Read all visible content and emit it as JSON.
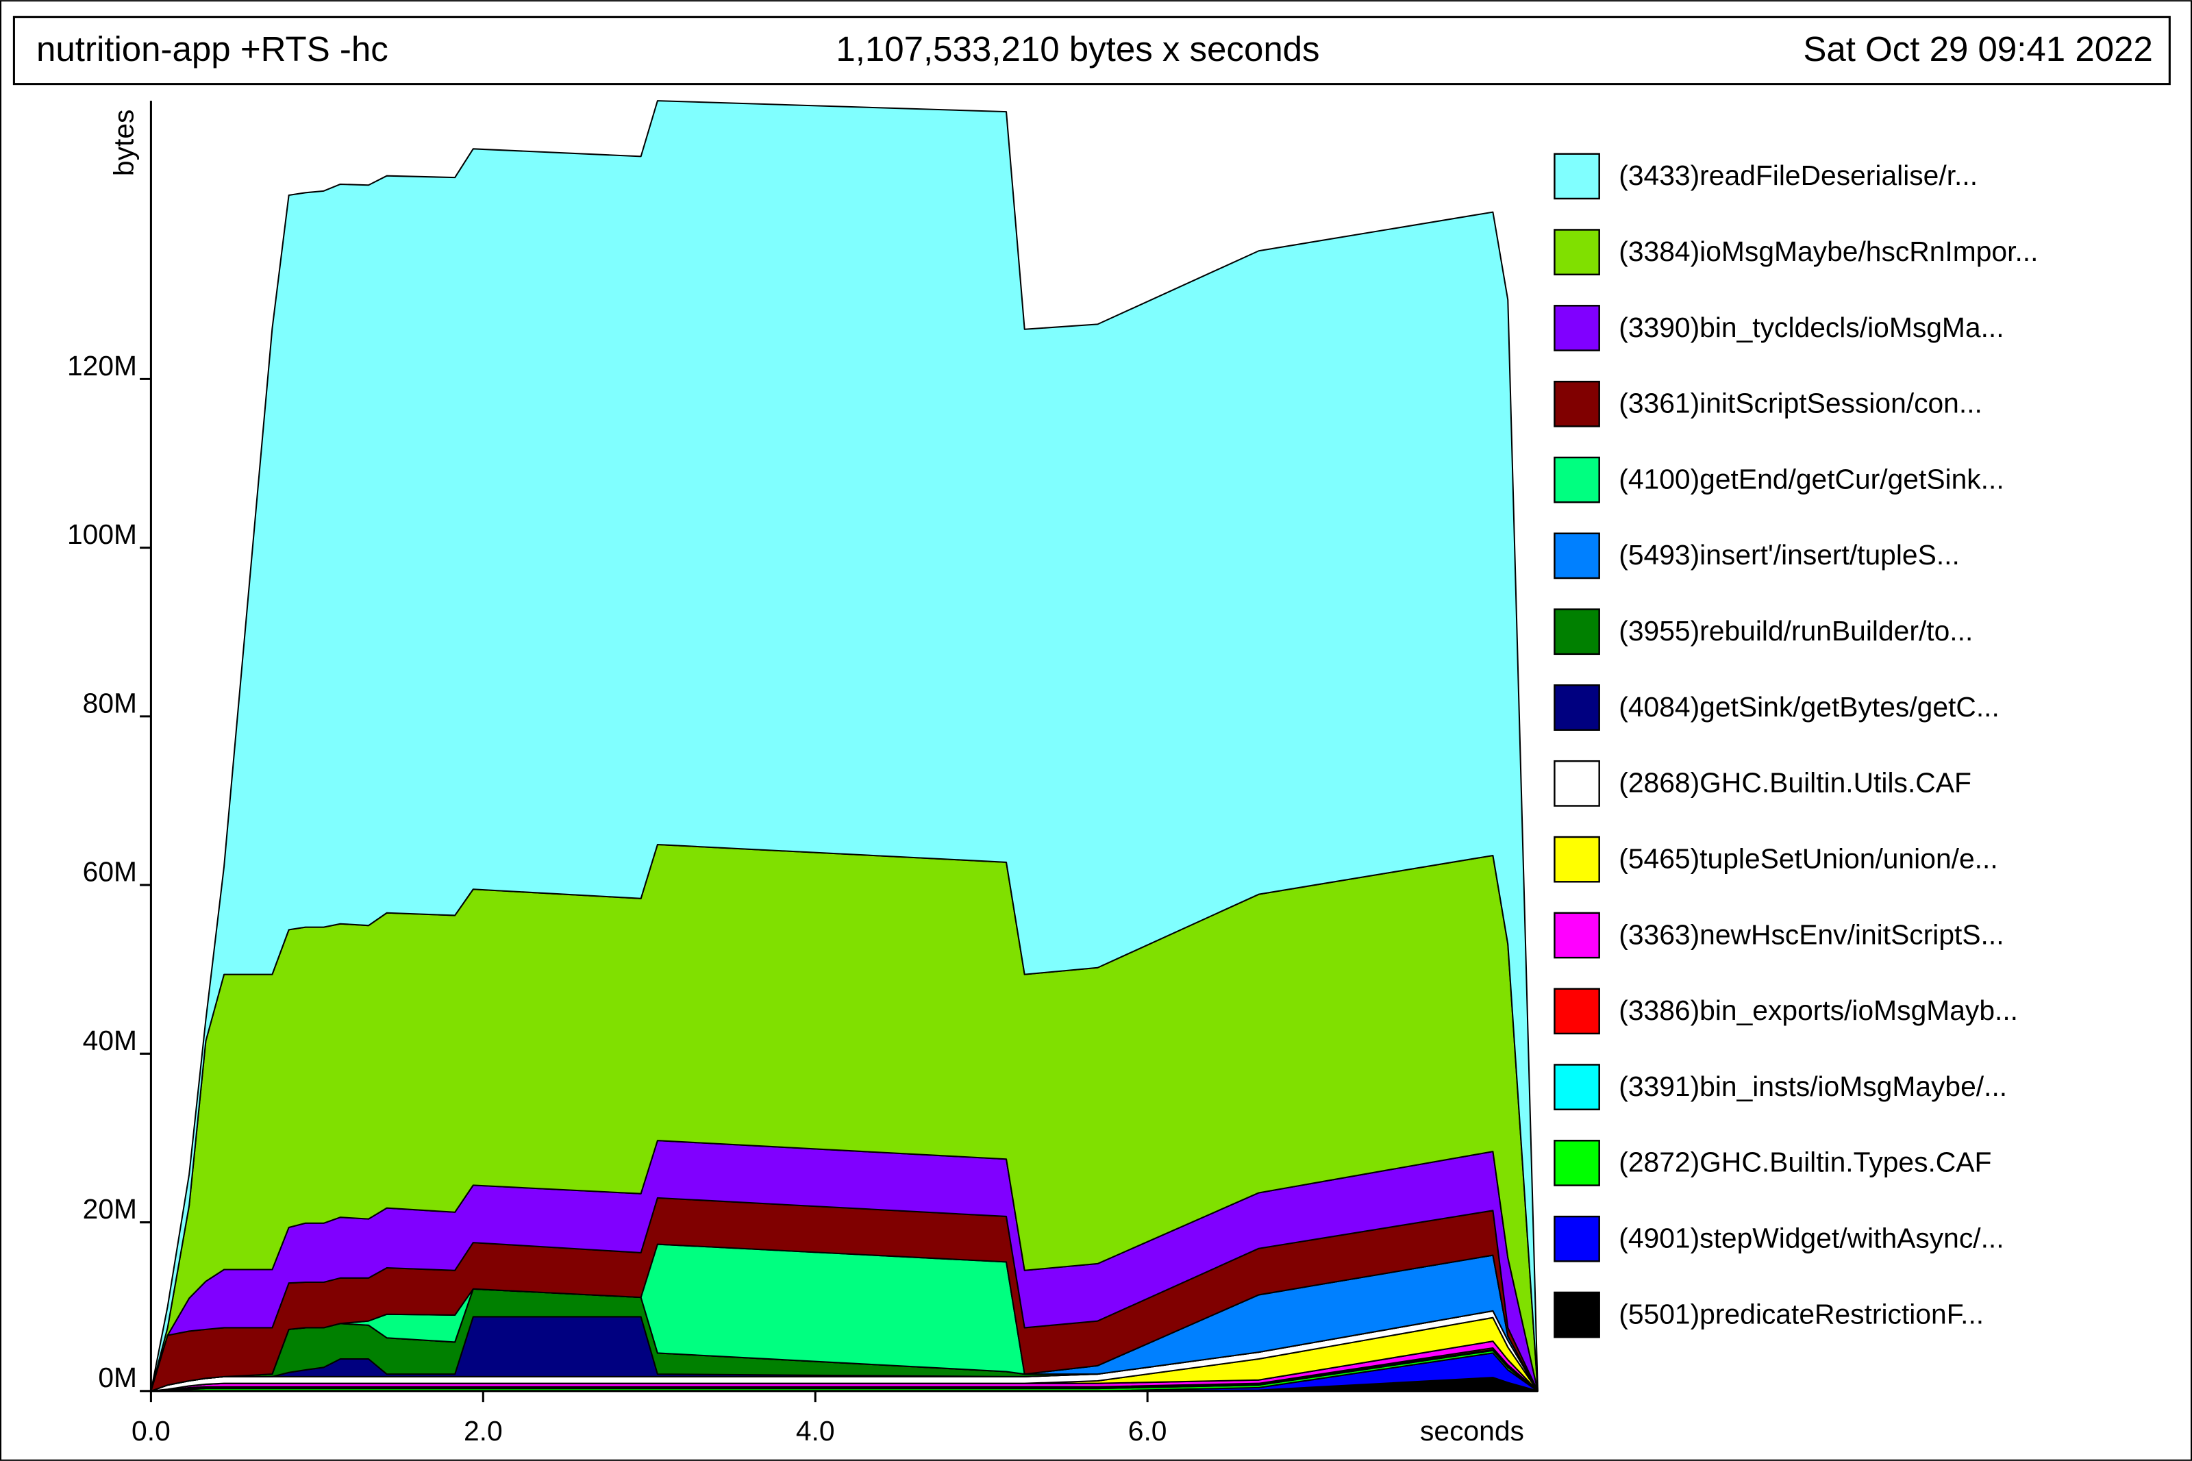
{
  "chart_data": {
    "type": "stacked_area",
    "title": "nutrition-app +RTS -hc",
    "subtitle": "1,107,533,210 bytes x seconds",
    "timestamp": "Sat Oct 29 09:41 2022",
    "xlabel": "seconds",
    "ylabel": "bytes",
    "x": [
      0,
      0.1,
      0.23,
      0.33,
      0.44,
      0.73,
      0.83,
      0.93,
      1.04,
      1.14,
      1.31,
      1.42,
      1.83,
      1.94,
      2.95,
      3.05,
      5.15,
      5.26,
      5.7,
      6.67,
      8.08,
      8.17,
      8.35
    ],
    "xlim": [
      0,
      8.35
    ],
    "xticks": [
      {
        "value": 0,
        "label": "0.0"
      },
      {
        "value": 2,
        "label": "2.0"
      },
      {
        "value": 4,
        "label": "4.0"
      },
      {
        "value": 6,
        "label": "6.0"
      }
    ],
    "ylim": [
      0,
      153000000
    ],
    "yticks": [
      {
        "value": 0,
        "label": "0M"
      },
      {
        "value": 20000000,
        "label": "20M"
      },
      {
        "value": 40000000,
        "label": "40M"
      },
      {
        "value": 60000000,
        "label": "60M"
      },
      {
        "value": 80000000,
        "label": "80M"
      },
      {
        "value": 100000000,
        "label": "100M"
      },
      {
        "value": 120000000,
        "label": "120M"
      }
    ],
    "series": [
      {
        "name": "(3433)readFileDeserialise/r...",
        "color": "#80ffff",
        "values": [
          0,
          2500000,
          3700000,
          2500000,
          12800000,
          76600000,
          87100000,
          87100000,
          87300000,
          87700000,
          87800000,
          87400000,
          87500000,
          87800000,
          88000000,
          88200000,
          89000000,
          76500000,
          76300000,
          76300000,
          76300000,
          76400000,
          0
        ]
      },
      {
        "name": "(3384)ioMsgMaybe/hscRnImpor...",
        "color": "#80e000",
        "values": [
          0,
          900000,
          11000000,
          28500000,
          35000000,
          35000000,
          35300000,
          35100000,
          35100000,
          34800000,
          34800000,
          35000000,
          35200000,
          35100000,
          35000000,
          35100000,
          35200000,
          35100000,
          35100000,
          35400000,
          35100000,
          37200000,
          0
        ]
      },
      {
        "name": "(3390)bin_tycldecls/ioMsgMa...",
        "color": "#8000ff",
        "values": [
          0,
          0,
          3900000,
          5700000,
          6900000,
          6900000,
          6600000,
          7000000,
          7000000,
          7200000,
          7000000,
          7100000,
          6900000,
          6800000,
          7000000,
          6800000,
          6800000,
          6800000,
          6800000,
          6600000,
          7000000,
          8300000,
          0
        ]
      },
      {
        "name": "(3361)initScriptSession/con...",
        "color": "#800000",
        "values": [
          0,
          5900000,
          5900000,
          5800000,
          5800000,
          5500000,
          5500000,
          5400000,
          5400000,
          5400000,
          5100000,
          5500000,
          5300000,
          5500000,
          5300000,
          5500000,
          5400000,
          5500000,
          5300000,
          5500000,
          5300000,
          1000000,
          0
        ]
      },
      {
        "name": "(4100)getEnd/getCur/getSink...",
        "color": "#00ff80",
        "values": [
          0,
          0,
          0,
          0,
          0,
          0,
          0,
          0,
          0,
          0,
          500000,
          2800000,
          3200000,
          0,
          0,
          12900000,
          13000000,
          0,
          0,
          0,
          0,
          0,
          0
        ]
      },
      {
        "name": "(5493)insert'/insert/tupleS...",
        "color": "#0080ff",
        "values": [
          0,
          0,
          0,
          0,
          0,
          0,
          0,
          0,
          0,
          0,
          0,
          0,
          0,
          0,
          0,
          0,
          0,
          0,
          1000000,
          6800000,
          6600000,
          500000,
          0
        ]
      },
      {
        "name": "(3955)rebuild/runBuilder/to...",
        "color": "#008000",
        "values": [
          0,
          0,
          0,
          0,
          0,
          300000,
          5100000,
          5000000,
          4700000,
          4200000,
          4000000,
          4300000,
          3800000,
          3300000,
          2300000,
          2500000,
          600000,
          300000,
          0,
          0,
          0,
          0,
          0
        ]
      },
      {
        "name": "(4084)getSink/getBytes/getC...",
        "color": "#000080",
        "values": [
          0,
          0,
          0,
          0,
          0,
          0,
          500000,
          800000,
          1100000,
          2100000,
          2100000,
          300000,
          300000,
          7100000,
          7100000,
          300000,
          0,
          0,
          0,
          0,
          0,
          0,
          0
        ]
      },
      {
        "name": "(2868)GHC.Builtin.Utils.CAF",
        "color": "#ffffff",
        "values": [
          0,
          500000,
          600000,
          700000,
          800000,
          800000,
          800000,
          800000,
          800000,
          800000,
          800000,
          800000,
          800000,
          800000,
          800000,
          800000,
          800000,
          800000,
          800000,
          800000,
          800000,
          800000,
          0
        ]
      },
      {
        "name": "(5465)tupleSetUnion/union/e...",
        "color": "#ffff00",
        "values": [
          0,
          0,
          0,
          0,
          0,
          0,
          0,
          0,
          0,
          0,
          0,
          0,
          0,
          0,
          0,
          0,
          0,
          0,
          300000,
          2500000,
          2800000,
          1500000,
          0
        ]
      },
      {
        "name": "(3363)newHscEnv/initScriptS...",
        "color": "#ff00ff",
        "values": [
          0,
          100000,
          200000,
          300000,
          400000,
          400000,
          400000,
          400000,
          400000,
          400000,
          400000,
          400000,
          400000,
          400000,
          400000,
          400000,
          400000,
          400000,
          400000,
          400000,
          800000,
          600000,
          0
        ]
      },
      {
        "name": "(3386)bin_exports/ioMsgMayb...",
        "color": "#ff0000",
        "values": [
          0,
          0,
          100000,
          100000,
          100000,
          100000,
          100000,
          100000,
          100000,
          100000,
          100000,
          100000,
          100000,
          100000,
          100000,
          100000,
          100000,
          100000,
          100000,
          100000,
          200000,
          200000,
          0
        ]
      },
      {
        "name": "(3391)bin_insts/ioMsgMaybe/...",
        "color": "#00ffff",
        "values": [
          0,
          0,
          100000,
          100000,
          100000,
          100000,
          100000,
          100000,
          100000,
          100000,
          100000,
          100000,
          100000,
          100000,
          100000,
          100000,
          100000,
          100000,
          100000,
          100000,
          100000,
          100000,
          0
        ]
      },
      {
        "name": "(2872)GHC.Builtin.Types.CAF",
        "color": "#00ff00",
        "values": [
          0,
          100000,
          200000,
          300000,
          300000,
          300000,
          300000,
          300000,
          300000,
          300000,
          300000,
          300000,
          300000,
          300000,
          300000,
          300000,
          300000,
          300000,
          300000,
          300000,
          300000,
          300000,
          0
        ]
      },
      {
        "name": "(4901)stepWidget/withAsync/...",
        "color": "#0000ff",
        "values": [
          0,
          0,
          0,
          0,
          0,
          0,
          0,
          0,
          0,
          0,
          0,
          0,
          0,
          0,
          0,
          0,
          0,
          0,
          0,
          300000,
          2900000,
          1500000,
          0
        ]
      },
      {
        "name": "(5501)predicateRestrictionF...",
        "color": "#000000",
        "values": [
          0,
          0,
          0,
          0,
          0,
          0,
          0,
          0,
          0,
          0,
          0,
          0,
          0,
          0,
          0,
          0,
          0,
          0,
          0,
          100000,
          1600000,
          1000000,
          0
        ]
      }
    ]
  }
}
